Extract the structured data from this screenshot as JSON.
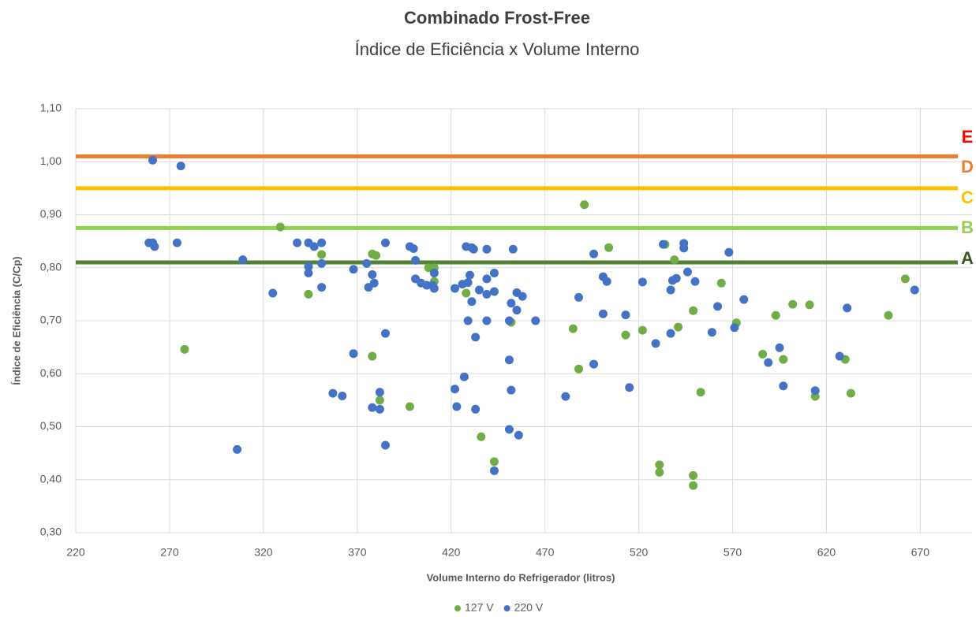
{
  "chart_data": {
    "type": "scatter",
    "title": "Combinado Frost-Free",
    "subtitle": "Índice de Eficiência x Volume Interno",
    "x_label": "Volume Interno do Refrigerador (litros)",
    "y_label": "Índice de Eficiência (C/Cp)",
    "xlim": [
      220,
      690
    ],
    "xticks": [
      220,
      270,
      320,
      370,
      420,
      470,
      520,
      570,
      620,
      670
    ],
    "ylim": [
      0.3,
      1.1
    ],
    "yticks": [
      {
        "value": 0.3,
        "label": "0,30"
      },
      {
        "value": 0.4,
        "label": "0,40"
      },
      {
        "value": 0.5,
        "label": "0,50"
      },
      {
        "value": 0.6,
        "label": "0,60"
      },
      {
        "value": 0.7,
        "label": "0,70"
      },
      {
        "value": 0.8,
        "label": "0,80"
      },
      {
        "value": 0.9,
        "label": "0,90"
      },
      {
        "value": 1.0,
        "label": "1,00"
      },
      {
        "value": 1.1,
        "label": "1,10"
      }
    ],
    "grid": true,
    "legend": "bottom",
    "reference_lines": [
      {
        "value": 1.01,
        "color": "#ed7d31"
      },
      {
        "value": 0.95,
        "color": "#ffc000"
      },
      {
        "value": 0.875,
        "color": "#92d050"
      },
      {
        "value": 0.81,
        "color": "#548235"
      }
    ],
    "class_labels": [
      {
        "label": "E",
        "color": "#ff0000"
      },
      {
        "label": "D",
        "color": "#ed7d31"
      },
      {
        "label": "C",
        "color": "#ffc000"
      },
      {
        "label": "B",
        "color": "#92d050"
      },
      {
        "label": "A",
        "color": "#385723"
      }
    ],
    "series": [
      {
        "name": "127 V",
        "color": "#70ad47",
        "x": [
          278,
          329,
          344,
          351,
          378,
          380,
          378,
          382,
          398,
          408,
          411,
          411,
          428,
          436,
          443,
          452,
          491,
          485,
          488,
          504,
          513,
          522,
          534,
          539,
          531,
          531,
          541,
          549,
          549,
          549,
          553,
          564,
          572,
          586,
          593,
          597,
          602,
          611,
          614,
          630,
          633,
          653,
          662
        ],
        "values": [
          0.646,
          0.877,
          0.75,
          0.825,
          0.826,
          0.823,
          0.633,
          0.55,
          0.538,
          0.8,
          0.8,
          0.774,
          0.752,
          0.481,
          0.434,
          0.697,
          0.919,
          0.685,
          0.609,
          0.838,
          0.673,
          0.682,
          0.844,
          0.815,
          0.428,
          0.414,
          0.688,
          0.719,
          0.408,
          0.389,
          0.565,
          0.771,
          0.696,
          0.637,
          0.71,
          0.627,
          0.731,
          0.73,
          0.557,
          0.627,
          0.563,
          0.71,
          0.779
        ]
      },
      {
        "name": "220 V",
        "color": "#4472c4",
        "x": [
          259,
          261,
          262,
          261,
          274,
          276,
          306,
          309,
          325,
          338,
          344,
          344,
          344,
          347,
          351,
          351,
          351,
          357,
          362,
          368,
          368,
          375,
          376,
          378,
          379,
          378,
          382,
          382,
          385,
          385,
          385,
          398,
          400,
          401,
          401,
          404,
          407,
          410,
          411,
          411,
          422,
          422,
          423,
          427,
          426,
          429,
          428,
          431,
          432,
          430,
          431,
          429,
          433,
          433,
          435,
          439,
          439,
          439,
          439,
          443,
          443,
          443,
          451,
          451,
          452,
          451,
          452,
          453,
          455,
          455,
          456,
          458,
          465,
          481,
          488,
          496,
          496,
          501,
          503,
          501,
          513,
          515,
          522,
          529,
          533,
          537,
          537,
          538,
          540,
          544,
          544,
          546,
          550,
          559,
          562,
          568,
          571,
          576,
          589,
          595,
          597,
          614,
          627,
          631,
          667
        ],
        "values": [
          0.847,
          0.847,
          0.84,
          1.003,
          0.847,
          0.992,
          0.457,
          0.815,
          0.752,
          0.847,
          0.847,
          0.802,
          0.79,
          0.84,
          0.847,
          0.808,
          0.763,
          0.563,
          0.558,
          0.638,
          0.797,
          0.808,
          0.763,
          0.787,
          0.771,
          0.536,
          0.565,
          0.533,
          0.847,
          0.676,
          0.465,
          0.84,
          0.836,
          0.814,
          0.779,
          0.771,
          0.767,
          0.767,
          0.761,
          0.79,
          0.761,
          0.571,
          0.538,
          0.594,
          0.769,
          0.772,
          0.84,
          0.838,
          0.835,
          0.786,
          0.736,
          0.7,
          0.669,
          0.533,
          0.758,
          0.835,
          0.779,
          0.75,
          0.7,
          0.79,
          0.755,
          0.417,
          0.7,
          0.626,
          0.569,
          0.495,
          0.733,
          0.835,
          0.753,
          0.72,
          0.484,
          0.746,
          0.7,
          0.557,
          0.744,
          0.826,
          0.618,
          0.783,
          0.774,
          0.713,
          0.711,
          0.574,
          0.773,
          0.657,
          0.844,
          0.758,
          0.676,
          0.776,
          0.78,
          0.846,
          0.837,
          0.792,
          0.774,
          0.678,
          0.727,
          0.829,
          0.687,
          0.74,
          0.621,
          0.649,
          0.577,
          0.568,
          0.633,
          0.724,
          0.758
        ]
      }
    ]
  }
}
